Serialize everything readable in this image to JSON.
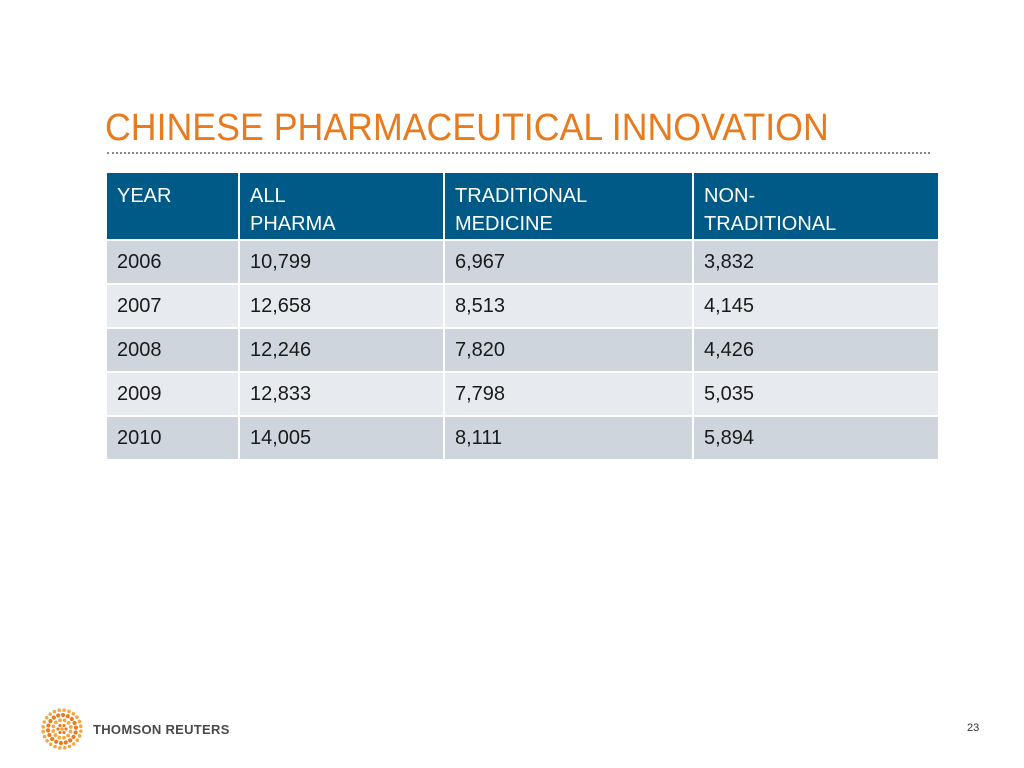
{
  "slide": {
    "title": "CHINESE PHARMACEUTICAL INNOVATION",
    "page_number": "23"
  },
  "colors": {
    "title": "#e87b1e",
    "header_background": "#005a87",
    "row_dark": "#cfd5dd",
    "row_light": "#e7eaee"
  },
  "table": {
    "headers": [
      {
        "line1": "YEAR",
        "line2": ""
      },
      {
        "line1": "ALL",
        "line2": "PHARMA"
      },
      {
        "line1": "TRADITIONAL",
        "line2": "MEDICINE"
      },
      {
        "line1": "NON-",
        "line2": "TRADITIONAL"
      }
    ],
    "rows": [
      [
        "2006",
        "10,799",
        "6,967",
        "3,832"
      ],
      [
        "2007",
        "12,658",
        "8,513",
        "4,145"
      ],
      [
        "2008",
        "12,246",
        "7,820",
        "4,426"
      ],
      [
        "2009",
        "12,833",
        "7,798",
        "5,035"
      ],
      [
        "2010",
        "14,005",
        "8,111",
        "5,894"
      ]
    ]
  },
  "footer": {
    "logo_icon": "thomson-reuters-dot-sphere-icon",
    "logo_text": "THOMSON REUTERS"
  }
}
